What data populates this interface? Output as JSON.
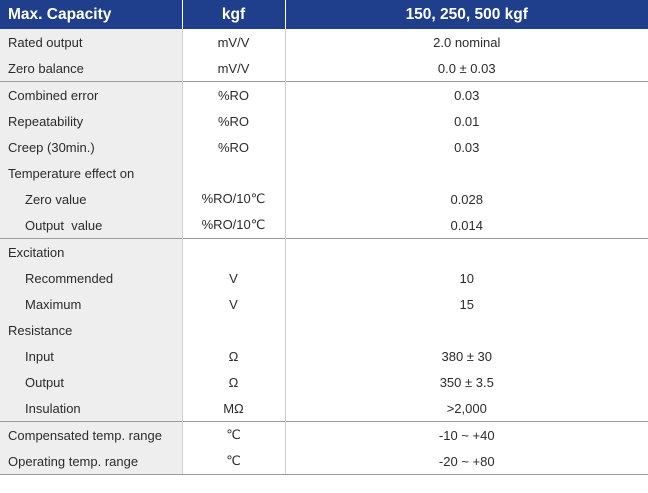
{
  "header": {
    "parameter": "Max. Capacity",
    "unit": "kgf",
    "value": "150, 250, 500 kgf"
  },
  "rows": [
    {
      "label": "Rated output",
      "unit": "mV/V",
      "value": "2.0 nominal"
    },
    {
      "label": "Zero balance",
      "unit": "mV/V",
      "value": "0.0 ± 0.03"
    },
    {
      "label": "Combined error",
      "unit": "%RO",
      "value": "0.03"
    },
    {
      "label": "Repeatability",
      "unit": "%RO",
      "value": "0.01"
    },
    {
      "label": "Creep (30min.)",
      "unit": "%RO",
      "value": "0.03"
    },
    {
      "label": "Temperature effect on",
      "unit": "",
      "value": ""
    },
    {
      "label": "Zero value",
      "unit": "%RO/10℃",
      "value": "0.028"
    },
    {
      "label": "Output  value",
      "unit": "%RO/10℃",
      "value": "0.014"
    },
    {
      "label": "Excitation",
      "unit": "",
      "value": ""
    },
    {
      "label": "Recommended",
      "unit": "V",
      "value": "10"
    },
    {
      "label": "Maximum",
      "unit": "V",
      "value": "15"
    },
    {
      "label": "Resistance",
      "unit": "",
      "value": ""
    },
    {
      "label": "Input",
      "unit": "Ω",
      "value": "380 ± 30"
    },
    {
      "label": "Output",
      "unit": "Ω",
      "value": "350 ± 3.5"
    },
    {
      "label": "Insulation",
      "unit": "MΩ",
      "value": ">2,000"
    },
    {
      "label": "Compensated temp. range",
      "unit": "℃",
      "value": "-10 ~ +40"
    },
    {
      "label": "Operating temp. range",
      "unit": "℃",
      "value": "-20 ~ +80"
    }
  ]
}
